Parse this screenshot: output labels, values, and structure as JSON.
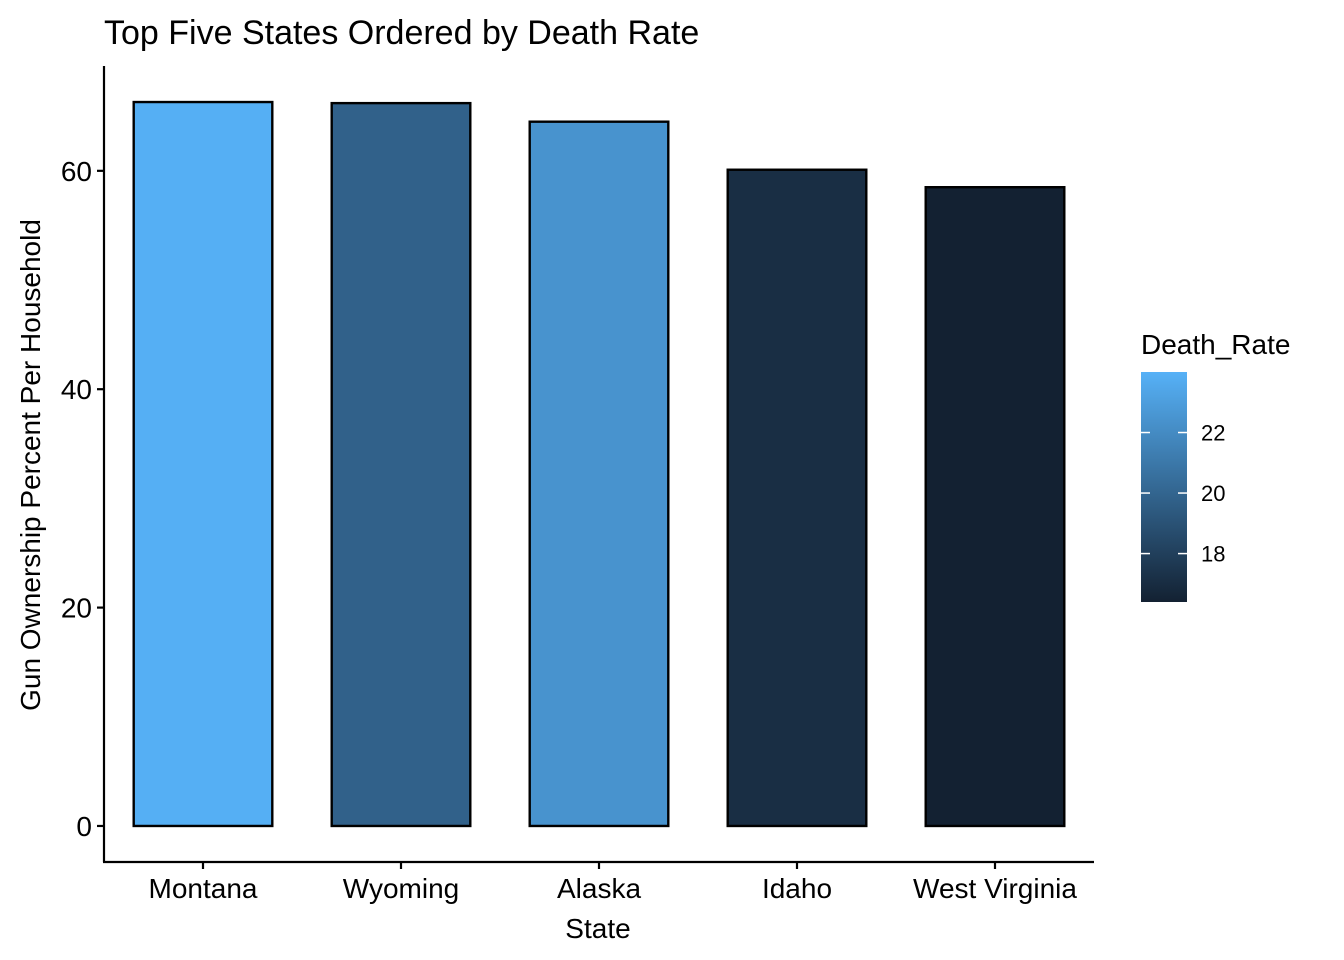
{
  "chart_data": {
    "type": "bar",
    "title": "Top Five States Ordered by Death Rate",
    "xlabel": "State",
    "ylabel": "Gun Ownership Percent Per Household",
    "categories": [
      "Montana",
      "Wyoming",
      "Alaska",
      "Idaho",
      "West Virginia"
    ],
    "values": [
      66.3,
      66.2,
      64.5,
      60.1,
      58.5
    ],
    "fill_variable": "Death_Rate",
    "fill_values": [
      23.9,
      19.8,
      22.4,
      17.1,
      16.4
    ],
    "ylim": [
      -3.3,
      69.6
    ],
    "yticks": [
      0,
      20,
      40,
      60
    ],
    "grid": false,
    "legend": {
      "title": "Death_Rate",
      "position": "right",
      "range": [
        16.4,
        24.0
      ],
      "ticks": [
        18,
        20,
        22
      ],
      "low_color": "#132132",
      "high_color": "#56B1F7"
    },
    "bar_outline_color": "#000000"
  }
}
